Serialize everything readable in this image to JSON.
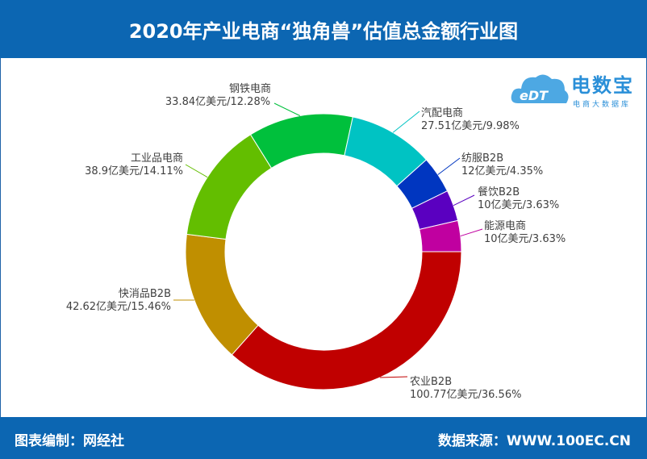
{
  "header": {
    "title": "2020年产业电商“独角兽”估值总金额行业图"
  },
  "footer": {
    "credit": "图表编制：网经社",
    "source": "数据来源：WWW.100EC.CN"
  },
  "logo": {
    "text": "电数宝",
    "sub": "电商大数据库",
    "mark": "eDT"
  },
  "chart_data": {
    "type": "pie",
    "title": "2020年产业电商“独角兽”估值总金额行业图",
    "donut": true,
    "unit": "亿美元",
    "slices": [
      {
        "name": "农业B2B",
        "value": 100.77,
        "percent": "36.56%",
        "color": "#c00000",
        "label": "100.77亿美元/36.56%"
      },
      {
        "name": "快消品B2B",
        "value": 42.62,
        "percent": "15.46%",
        "color": "#c08f00",
        "label": "42.62亿美元/15.46%"
      },
      {
        "name": "工业品电商",
        "value": 38.9,
        "percent": "14.11%",
        "color": "#63be00",
        "label": "38.9亿美元/14.11%"
      },
      {
        "name": "钢铁电商",
        "value": 33.84,
        "percent": "12.28%",
        "color": "#00c03c",
        "label": "33.84亿美元/12.28%"
      },
      {
        "name": "汽配电商",
        "value": 27.51,
        "percent": "9.98%",
        "color": "#00c3c3",
        "label": "27.51亿美元/9.98%"
      },
      {
        "name": "纺服B2B",
        "value": 12,
        "percent": "4.35%",
        "color": "#0036c0",
        "label": "12亿美元/4.35%"
      },
      {
        "name": "餐饮B2B",
        "value": 10,
        "percent": "3.63%",
        "color": "#5a00c0",
        "label": "10亿美元/3.63%"
      },
      {
        "name": "能源电商",
        "value": 10,
        "percent": "3.63%",
        "color": "#c000a0",
        "label": "10亿美元/3.63%"
      }
    ]
  }
}
